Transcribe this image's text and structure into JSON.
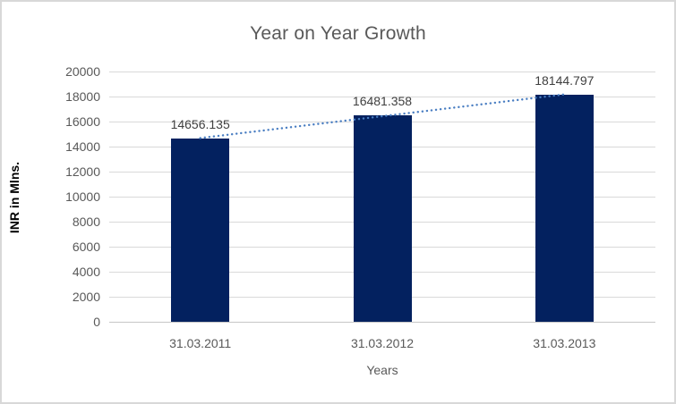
{
  "chart_data": {
    "type": "bar",
    "title": "Year on Year Growth",
    "xlabel": "Years",
    "ylabel": "INR in Mlns.",
    "categories": [
      "31.03.2011",
      "31.03.2012",
      "31.03.2013"
    ],
    "values": [
      14656.135,
      16481.358,
      18144.797
    ],
    "data_labels": [
      "14656.135",
      "16481.358",
      "18144.797"
    ],
    "ylim": [
      0,
      20000
    ],
    "ytick_step": 2000,
    "grid": "horizontal",
    "legend": "none",
    "bar_color": "#03215f",
    "trendline": {
      "type": "linear",
      "style": "dotted",
      "color": "#4a7ec2"
    },
    "colors": {
      "title_text": "#595959",
      "tick_text": "#595959",
      "data_label_text": "#3f3f3f",
      "gridline": "#d9d9d9",
      "axis_line": "#c6c6c6",
      "frame_border": "#d8d8d8",
      "background": "#ffffff"
    }
  }
}
